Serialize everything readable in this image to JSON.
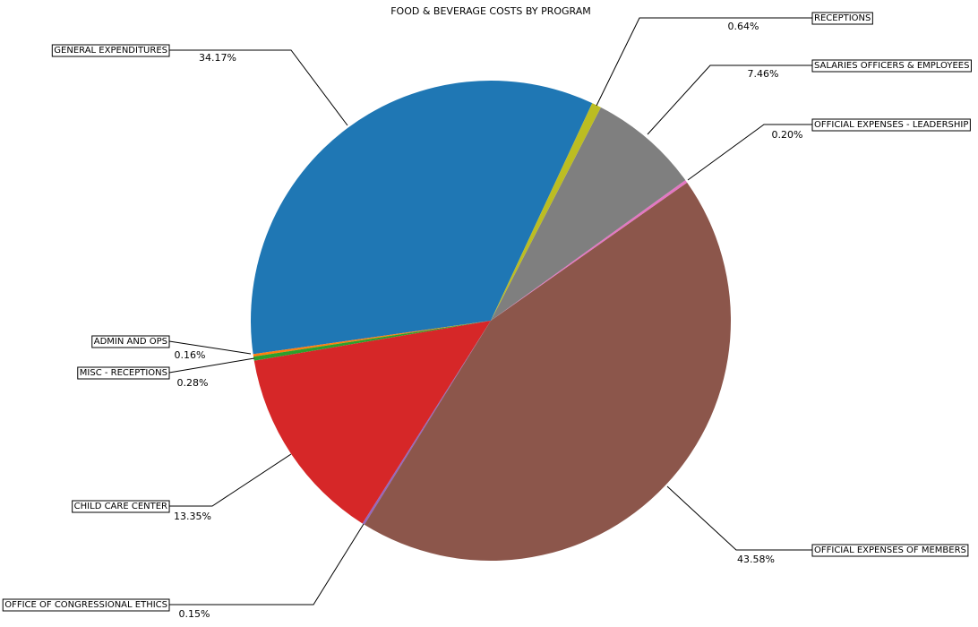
{
  "chart_data": {
    "type": "pie",
    "title": "FOOD & BEVERAGE COSTS BY PROGRAM",
    "categories": [
      "GENERAL EXPENDITURES",
      "ADMIN AND OPS",
      "MISC - RECEPTIONS",
      "CHILD CARE CENTER",
      "OFFICE OF CONGRESSIONAL ETHICS",
      "OFFICIAL EXPENSES OF MEMBERS",
      "OFFICIAL EXPENSES - LEADERSHIP",
      "SALARIES  OFFICERS & EMPLOYEES",
      "RECEPTIONS"
    ],
    "values": [
      34.17,
      0.16,
      0.28,
      13.35,
      0.15,
      43.58,
      0.2,
      7.46,
      0.64
    ],
    "value_labels": [
      "34.17%",
      "0.16%",
      "0.28%",
      "13.35%",
      "0.15%",
      "43.58%",
      "0.20%",
      "7.46%",
      "0.64%"
    ],
    "colors": [
      "#1f77b4",
      "#ff7f0e",
      "#2ca02c",
      "#d62728",
      "#9467bd",
      "#8c564b",
      "#e377c2",
      "#7f7f7f",
      "#bcbd22"
    ]
  }
}
